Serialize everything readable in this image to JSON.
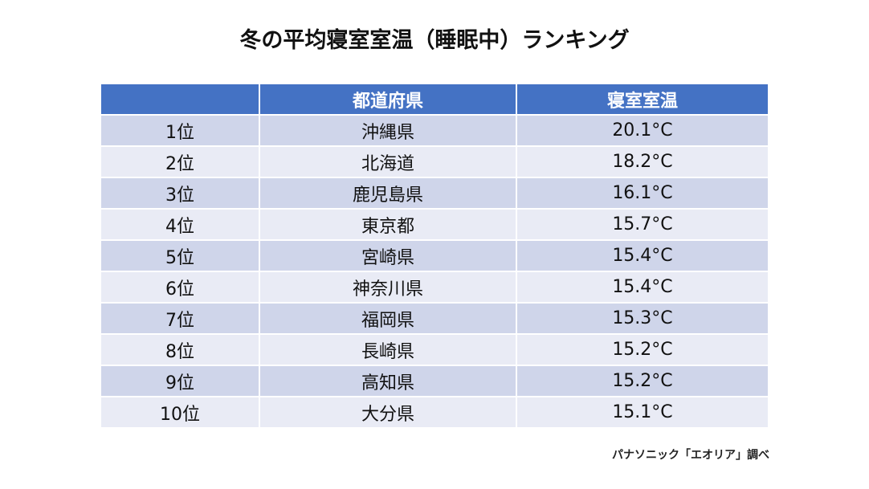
{
  "title": "冬の平均寝室室温（睡眠中）ランキング",
  "headers": [
    "",
    "都道府県",
    "寝室室温"
  ],
  "rows": [
    [
      "1位",
      "沖縄県",
      "20.1°C"
    ],
    [
      "2位",
      "北海道",
      "18.2°C"
    ],
    [
      "3位",
      "鹿児島県",
      "16.1°C"
    ],
    [
      "4位",
      "東京都",
      "15.7°C"
    ],
    [
      "5位",
      "宮崎県",
      "15.4°C"
    ],
    [
      "6位",
      "神奈川県",
      "15.4°C"
    ],
    [
      "7位",
      "福岡県",
      "15.3°C"
    ],
    [
      "8位",
      "長崎県",
      "15.2°C"
    ],
    [
      "9位",
      "高知県",
      "15.2°C"
    ],
    [
      "10位",
      "大分県",
      "15.1°C"
    ]
  ],
  "source": "パナソニック「エオリア」調べ",
  "colors": {
    "header": "#4472C4",
    "row_odd": "#CFD5EA",
    "row_even": "#E9EBF5"
  }
}
